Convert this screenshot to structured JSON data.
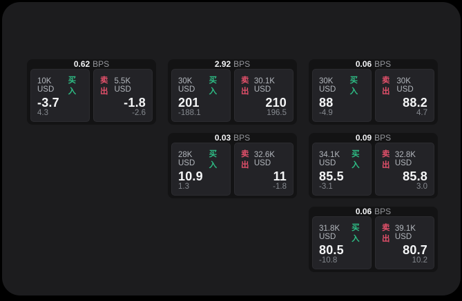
{
  "labels": {
    "bps_unit": "BPS",
    "buy": "买入",
    "sell": "卖出"
  },
  "colors": {
    "background": "#000000",
    "panel": "#1c1c1e",
    "card": "#131314",
    "tile": "#232327",
    "buy_green": "#2ebd85",
    "sell_red": "#e2506a",
    "price_white": "#f5f6f7",
    "muted_gray": "#85898f"
  },
  "cards": [
    {
      "bps": "0.62",
      "buy": {
        "amount": "10K USD",
        "price": "-3.7",
        "delta": "4.3"
      },
      "sell": {
        "amount": "5.5K USD",
        "price": "-1.8",
        "delta": "-2.6"
      }
    },
    {
      "bps": "2.92",
      "buy": {
        "amount": "30K USD",
        "price": "201",
        "delta": "-188.1"
      },
      "sell": {
        "amount": "30.1K USD",
        "price": "210",
        "delta": "196.5"
      }
    },
    {
      "bps": "0.06",
      "buy": {
        "amount": "30K USD",
        "price": "88",
        "delta": "-4.9"
      },
      "sell": {
        "amount": "30K USD",
        "price": "88.2",
        "delta": "4.7"
      }
    },
    {
      "bps": "0.03",
      "buy": {
        "amount": "28K USD",
        "price": "10.9",
        "delta": "1.3"
      },
      "sell": {
        "amount": "32.6K USD",
        "price": "11",
        "delta": "-1.8"
      }
    },
    {
      "bps": "0.09",
      "buy": {
        "amount": "34.1K USD",
        "price": "85.5",
        "delta": "-3.1"
      },
      "sell": {
        "amount": "32.8K USD",
        "price": "85.8",
        "delta": "3.0"
      }
    },
    {
      "bps": "0.06",
      "buy": {
        "amount": "31.8K USD",
        "price": "80.5",
        "delta": "-10.8"
      },
      "sell": {
        "amount": "39.1K USD",
        "price": "80.7",
        "delta": "10.2"
      }
    }
  ]
}
